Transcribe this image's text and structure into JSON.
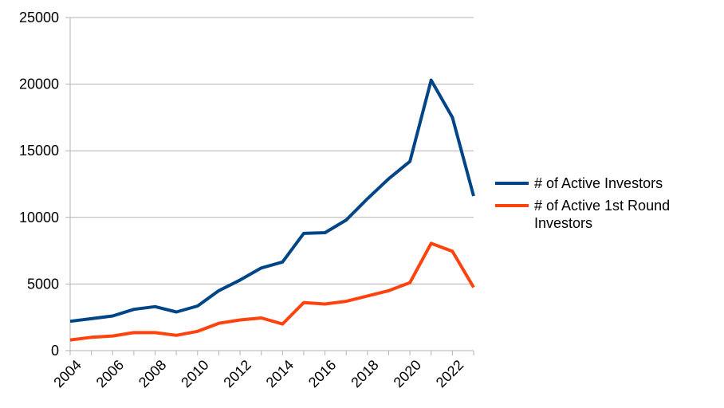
{
  "chart_data": {
    "type": "line",
    "x": [
      2004,
      2005,
      2006,
      2007,
      2008,
      2009,
      2010,
      2011,
      2012,
      2013,
      2014,
      2015,
      2016,
      2017,
      2018,
      2019,
      2020,
      2021,
      2022,
      2023
    ],
    "x_tick_labels": [
      "2004",
      "2006",
      "2008",
      "2010",
      "2012",
      "2014",
      "2016",
      "2018",
      "2020",
      "2022"
    ],
    "y_tick_labels": [
      "0",
      "5000",
      "10000",
      "15000",
      "20000",
      "25000"
    ],
    "ylim": [
      0,
      25000
    ],
    "grid": true,
    "legend_position": "right",
    "series": [
      {
        "name": "# of Active Investors",
        "color": "#004586",
        "values": [
          2200,
          2400,
          2600,
          3100,
          3300,
          2900,
          3350,
          4500,
          5300,
          6200,
          6650,
          8800,
          8850,
          9800,
          11400,
          12900,
          14200,
          20300,
          17500,
          11600
        ]
      },
      {
        "name": "# of Active 1st Round Investors",
        "color": "#ff420e",
        "values": [
          800,
          1000,
          1100,
          1350,
          1350,
          1150,
          1450,
          2050,
          2300,
          2450,
          2000,
          3600,
          3500,
          3700,
          4100,
          4500,
          5100,
          8050,
          7450,
          4750
        ]
      }
    ]
  }
}
